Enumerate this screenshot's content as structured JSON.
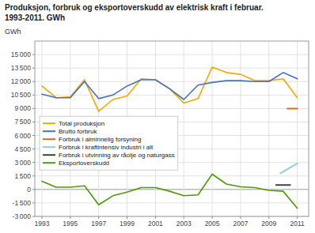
{
  "chart_data": {
    "type": "line",
    "title": "Produksjon, forbruk og eksportoverskudd av elektrisk kraft i februar.",
    "subtitle": "1993-2011. GWh",
    "ylabel": "GWh",
    "x": [
      1993,
      1994,
      1995,
      1996,
      1997,
      1998,
      1999,
      2000,
      2001,
      2002,
      2003,
      2004,
      2005,
      2006,
      2007,
      2008,
      2009,
      2010,
      2011
    ],
    "series": [
      {
        "name": "Total produksjon",
        "color": "#f5a800",
        "values": [
          11500,
          10200,
          10300,
          12200,
          8700,
          10000,
          10400,
          12300,
          12200,
          11200,
          9600,
          10100,
          13600,
          13000,
          12800,
          12100,
          12100,
          12300,
          10200
        ]
      },
      {
        "name": "Brutto forbruk",
        "color": "#4472c4",
        "values": [
          10600,
          10200,
          10200,
          12000,
          10100,
          10500,
          11500,
          12200,
          12200,
          11200,
          10000,
          11600,
          11900,
          12100,
          12100,
          12000,
          12000,
          13000,
          12300
        ]
      },
      {
        "name": "Forbruk i alminnelig forsyning",
        "color": "#e36c09",
        "x": [
          2010.3,
          2011.0
        ],
        "values": [
          9000,
          9000
        ]
      },
      {
        "name": "Forbruk i kraftintensiv industri i alt",
        "color": "#92cddc",
        "x": [
          2009.8,
          2011.0
        ],
        "values": [
          1800,
          2900
        ]
      },
      {
        "name": "Forbruk i utvinning av råolje og naturgass",
        "color": "#404040",
        "x": [
          2009.5,
          2010.5
        ],
        "values": [
          500,
          500
        ]
      },
      {
        "name": "Eksportoverskudd",
        "color": "#4e9a06",
        "values": [
          900,
          250,
          250,
          400,
          -1700,
          -700,
          -300,
          200,
          200,
          -200,
          -700,
          -600,
          1700,
          600,
          300,
          200,
          -100,
          -200,
          -2100
        ]
      }
    ],
    "ylim": [
      -3000,
      16500
    ],
    "yticks": [
      {
        "value": -3000,
        "label": "-3 000"
      },
      {
        "value": -1500,
        "label": "-1 500"
      },
      0,
      {
        "value": 1500,
        "label": "1 500"
      },
      {
        "value": 3000,
        "label": "3 000"
      },
      {
        "value": 4500,
        "label": "4 500"
      },
      {
        "value": 6000,
        "label": "6 000"
      },
      {
        "value": 7500,
        "label": "7 500"
      },
      {
        "value": 9000,
        "label": "9 000"
      },
      {
        "value": 10500,
        "label": "10 500"
      },
      {
        "value": 12000,
        "label": "12 000"
      },
      {
        "value": 13500,
        "label": "13 500"
      },
      {
        "value": 15000,
        "label": "15 000"
      }
    ],
    "xlim": [
      1992.5,
      2011.8
    ],
    "xticks": [
      1993,
      1995,
      1997,
      1999,
      2001,
      2003,
      2005,
      2007,
      2009,
      2011
    ],
    "grid": true,
    "legend": "left"
  }
}
